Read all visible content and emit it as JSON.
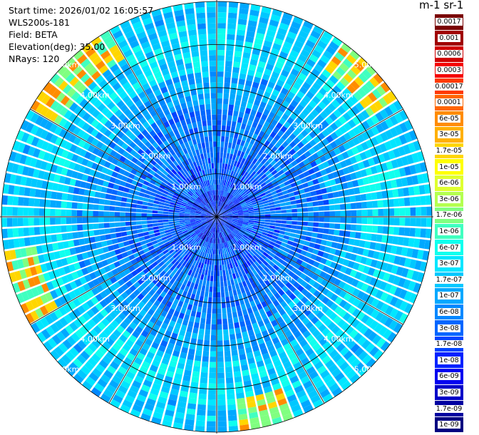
{
  "header": {
    "start_time": "Start time: 2026/01/02 16:05:57",
    "instrument": "WLS200s-181",
    "field": "Field: BETA",
    "elevation": "Elevation(deg): 35.00",
    "nrays": "NRays: 120"
  },
  "colorbar": {
    "unit_label": "m-1 sr-1",
    "levels": [
      {
        "label": "0.0017",
        "color": "#7a0000"
      },
      {
        "label": "0.001",
        "color": "#a00000"
      },
      {
        "label": "0.0006",
        "color": "#d00000"
      },
      {
        "label": "0.0003",
        "color": "#f50000"
      },
      {
        "label": "0.00017",
        "color": "#ff3a00"
      },
      {
        "label": "0.0001",
        "color": "#ff6600"
      },
      {
        "label": "6e-05",
        "color": "#ff8c00"
      },
      {
        "label": "3e-05",
        "color": "#ffb000"
      },
      {
        "label": "1.7e-05",
        "color": "#ffd600"
      },
      {
        "label": "1e-05",
        "color": "#ffff00"
      },
      {
        "label": "6e-06",
        "color": "#dfff30"
      },
      {
        "label": "3e-06",
        "color": "#b4ff50"
      },
      {
        "label": "1.7e-06",
        "color": "#80ff80"
      },
      {
        "label": "1e-06",
        "color": "#40ffc0"
      },
      {
        "label": "6e-07",
        "color": "#10ffee"
      },
      {
        "label": "3e-07",
        "color": "#00e6ff"
      },
      {
        "label": "1.7e-07",
        "color": "#00c8ff"
      },
      {
        "label": "1e-07",
        "color": "#00a8ff"
      },
      {
        "label": "6e-08",
        "color": "#0088ff"
      },
      {
        "label": "3e-08",
        "color": "#0066ff"
      },
      {
        "label": "1.7e-08",
        "color": "#0044ff"
      },
      {
        "label": "1e-08",
        "color": "#0022ff"
      },
      {
        "label": "6e-09",
        "color": "#0000f0"
      },
      {
        "label": "3e-09",
        "color": "#0000c8"
      },
      {
        "label": "1.7e-09",
        "color": "#0000a0"
      },
      {
        "label": "1e-09",
        "color": "#000080"
      }
    ]
  },
  "chart_data": {
    "type": "heatmap",
    "projection": "polar PPI (plan position indicator)",
    "field": "BETA",
    "elevation_deg": 35.0,
    "n_rays": 120,
    "max_range_km": 5.0,
    "ring_labels": [
      "1.00km",
      "2.00km",
      "3.00km",
      "4.00km",
      "5.00km"
    ],
    "ring_ranges_km": [
      1,
      2,
      3,
      4,
      5
    ],
    "color_scale": "logarithmic",
    "value_range": [
      1e-09,
      0.0017
    ],
    "grid": true,
    "features": [
      {
        "description": "dominant returns near center",
        "range_km": [
          0,
          2
        ],
        "typical_value": 3e-08
      },
      {
        "description": "enhanced annulus",
        "range_km": [
          3.5,
          5
        ],
        "typical_value": 3e-07
      },
      {
        "description": "strong patches",
        "azimuth_deg": [
          40,
          60,
          300,
          330
        ],
        "range_km": 4.8,
        "typical_value": 1.7e-05
      }
    ]
  }
}
